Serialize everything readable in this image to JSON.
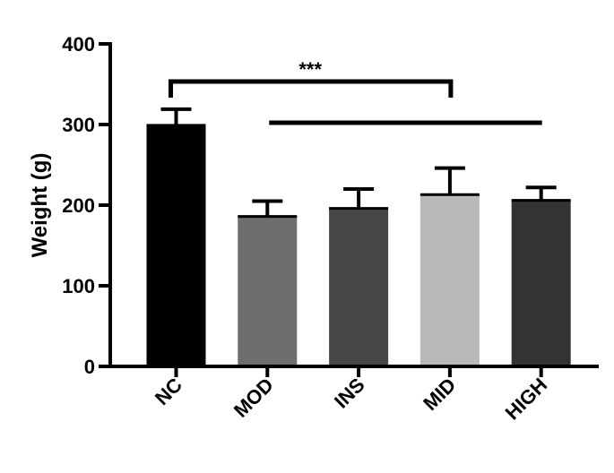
{
  "chart_data": {
    "type": "bar",
    "categories": [
      "NC",
      "MOD",
      "INS",
      "MID",
      "HIGH"
    ],
    "values": [
      299,
      186,
      196,
      213,
      206
    ],
    "errors": [
      20,
      19,
      24,
      33,
      16
    ],
    "bar_colors": [
      "#000000",
      "#6e6e6e",
      "#474747",
      "#b9b9b9",
      "#333333"
    ],
    "ylabel": "Weight (g)",
    "xlabel": "",
    "ylim": [
      0,
      400
    ],
    "yticks": [
      0,
      100,
      200,
      300,
      400
    ],
    "significance": [
      {
        "from": "NC",
        "to": "MID",
        "label": "***"
      },
      {
        "from": "MOD",
        "to": "HIGH",
        "label": ""
      }
    ],
    "grid": false,
    "legend": "none"
  }
}
